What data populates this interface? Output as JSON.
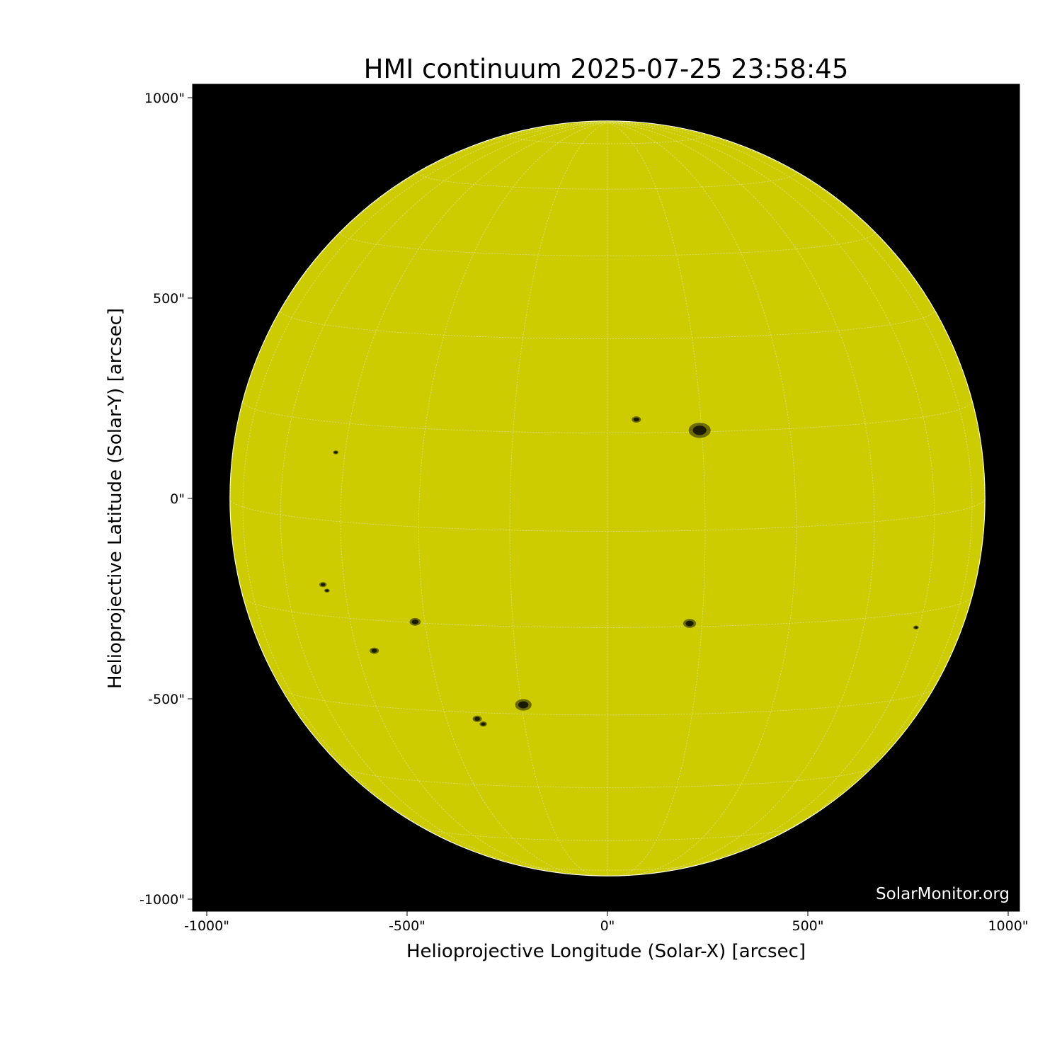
{
  "chart_data": {
    "type": "heatmap",
    "title": "HMI continuum 2025-07-25 23:58:45",
    "xlabel": "Helioprojective Longitude (Solar-X) [arcsec]",
    "ylabel": "Helioprojective Latitude (Solar-Y) [arcsec]",
    "xlim": [
      -1035,
      1030
    ],
    "ylim": [
      -1035,
      1030
    ],
    "xticks": [
      -1000,
      -500,
      0,
      500,
      1000
    ],
    "yticks": [
      -1000,
      -500,
      0,
      500,
      1000
    ],
    "xtick_labels": [
      "-1000\"",
      "-500\"",
      "0\"",
      "500\"",
      "1000\""
    ],
    "ytick_labels": [
      "-1000\"",
      "-500\"",
      "0\"",
      "500\"",
      "1000\""
    ],
    "solar_radius_arcsec": 942,
    "grid": true,
    "grid_spacing_deg": 15,
    "colors": {
      "disk": "#cccc00",
      "background": "#000000",
      "spot": "#1a1a00",
      "grid": "#e6e6b0"
    },
    "sunspots_arcsec": [
      {
        "x": 230,
        "y": 170,
        "size": 12
      },
      {
        "x": 72,
        "y": 197,
        "size": 5
      },
      {
        "x": 205,
        "y": -312,
        "size": 7
      },
      {
        "x": -480,
        "y": -308,
        "size": 6
      },
      {
        "x": -582,
        "y": -380,
        "size": 5
      },
      {
        "x": -210,
        "y": -515,
        "size": 9
      },
      {
        "x": -325,
        "y": -550,
        "size": 5
      },
      {
        "x": -310,
        "y": -563,
        "size": 4
      },
      {
        "x": -678,
        "y": 115,
        "size": 3
      },
      {
        "x": -710,
        "y": -215,
        "size": 4
      },
      {
        "x": -700,
        "y": -230,
        "size": 3
      },
      {
        "x": 770,
        "y": -322,
        "size": 3
      }
    ]
  },
  "watermark": "SolarMonitor.org"
}
